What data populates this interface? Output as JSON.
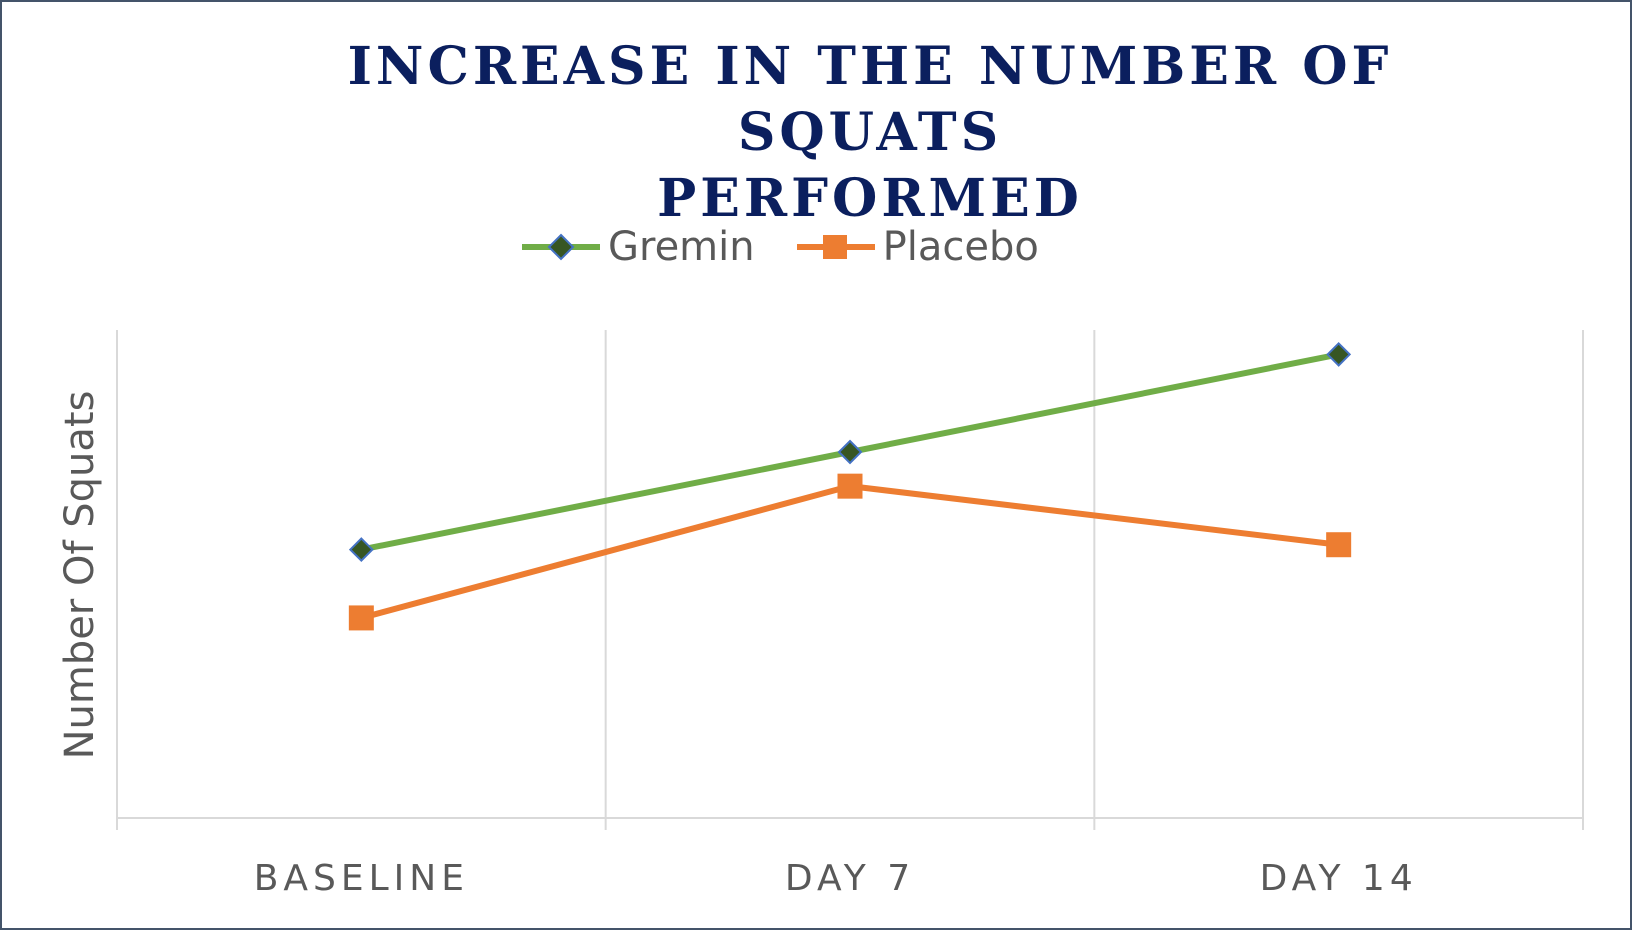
{
  "chart_data": {
    "type": "line",
    "title": [
      "INCREASE IN THE NUMBER OF SQUATS",
      "PERFORMED"
    ],
    "xlabel": "",
    "ylabel": "Number Of Squats",
    "categories": [
      "BASELINE",
      "DAY 7",
      "DAY 14"
    ],
    "series": [
      {
        "name": "Gremin",
        "values": [
          5.5,
          7.5,
          9.5
        ],
        "color": "#70ad47",
        "marker": "diamond",
        "marker_fill": "#375623",
        "marker_edge": "#4472c4"
      },
      {
        "name": "Placebo",
        "values": [
          4.1,
          6.8,
          5.6
        ],
        "color": "#ed7d31",
        "marker": "square",
        "marker_fill": "#ed7d31",
        "marker_edge": "#ed7d31"
      }
    ],
    "ylim": [
      0,
      10
    ],
    "grid": "vertical",
    "legend": "top-center",
    "show_y_ticks": false
  }
}
